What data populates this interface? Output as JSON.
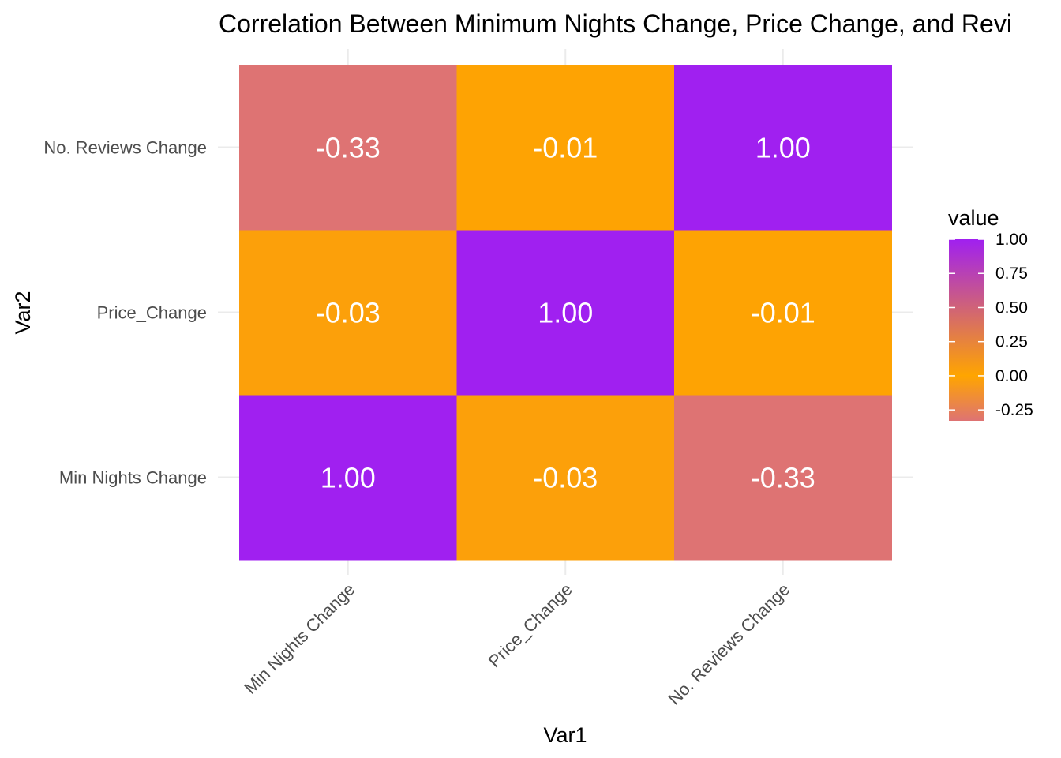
{
  "chart_data": {
    "type": "heatmap",
    "title": "Correlation Between Minimum Nights Change, Price Change, and Revi",
    "xlabel": "Var1",
    "ylabel": "Var2",
    "x_categories": [
      "Min Nights Change",
      "Price_Change",
      "No. Reviews Change"
    ],
    "y_categories": [
      "Min Nights Change",
      "Price_Change",
      "No. Reviews Change"
    ],
    "values": [
      [
        1.0,
        -0.03,
        -0.33
      ],
      [
        -0.03,
        1.0,
        -0.01
      ],
      [
        -0.33,
        -0.01,
        1.0
      ]
    ],
    "cell_labels": [
      [
        "1.00",
        "-0.03",
        "-0.33"
      ],
      [
        "-0.03",
        "1.00",
        "-0.01"
      ],
      [
        "-0.33",
        "-0.01",
        "1.00"
      ]
    ],
    "legend": {
      "title": "value",
      "ticks": [
        "1.00",
        "0.75",
        "0.50",
        "0.25",
        "0.00",
        "-0.25"
      ],
      "tick_values": [
        1.0,
        0.75,
        0.5,
        0.25,
        0.0,
        -0.25
      ],
      "range": [
        -0.33,
        1.0
      ],
      "colors": {
        "low": "#DE7373",
        "mid": "#FFA500",
        "high": "#A020F0"
      },
      "placement": "right"
    }
  }
}
